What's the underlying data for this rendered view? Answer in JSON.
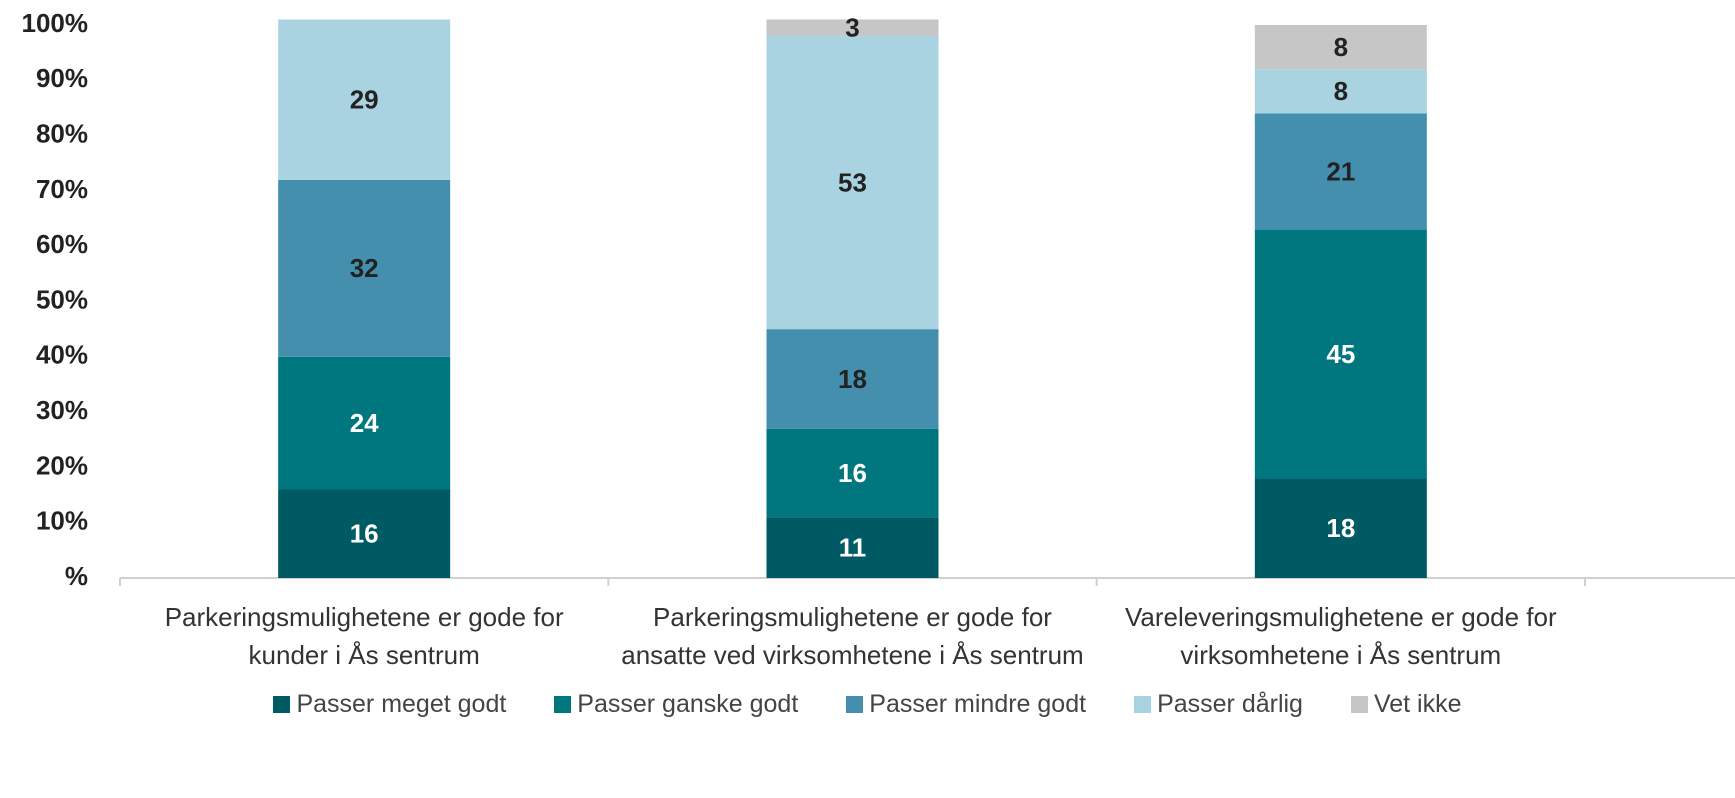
{
  "chart_data": {
    "type": "stacked_bar",
    "categories": [
      "Parkeringsmulighetene er gode for kunder i Ås sentrum",
      "Parkeringsmulighetene er gode for ansatte ved virksomhetene i Ås sentrum",
      "Vareleveringsmulighetene er gode for virksomhetene i Ås sentrum"
    ],
    "series": [
      {
        "name": "Passer meget godt",
        "color": "#005a64",
        "label_color": "#ffffff",
        "values": [
          16,
          11,
          18
        ]
      },
      {
        "name": "Passer ganske godt",
        "color": "#00767f",
        "label_color": "#ffffff",
        "values": [
          24,
          16,
          45
        ]
      },
      {
        "name": "Passer mindre godt",
        "color": "#448fad",
        "label_color": "#222222",
        "values": [
          32,
          18,
          21
        ]
      },
      {
        "name": "Passer dårlig",
        "color": "#a9d3e1",
        "label_color": "#222222",
        "values": [
          29,
          53,
          8
        ]
      },
      {
        "name": "Vet ikke",
        "color": "#c6c6c6",
        "label_color": "#222222",
        "values": [
          null,
          3,
          8
        ]
      }
    ],
    "ylim": [
      0,
      100
    ],
    "yticks": [
      {
        "value": 0,
        "label": "%"
      },
      {
        "value": 10,
        "label": "10%"
      },
      {
        "value": 20,
        "label": "20%"
      },
      {
        "value": 30,
        "label": "30%"
      },
      {
        "value": 40,
        "label": "40%"
      },
      {
        "value": 50,
        "label": "50%"
      },
      {
        "value": 60,
        "label": "60%"
      },
      {
        "value": 70,
        "label": "70%"
      },
      {
        "value": 80,
        "label": "80%"
      },
      {
        "value": 90,
        "label": "90%"
      },
      {
        "value": 100,
        "label": "100%"
      }
    ],
    "grid": false,
    "legend": "bottom"
  }
}
